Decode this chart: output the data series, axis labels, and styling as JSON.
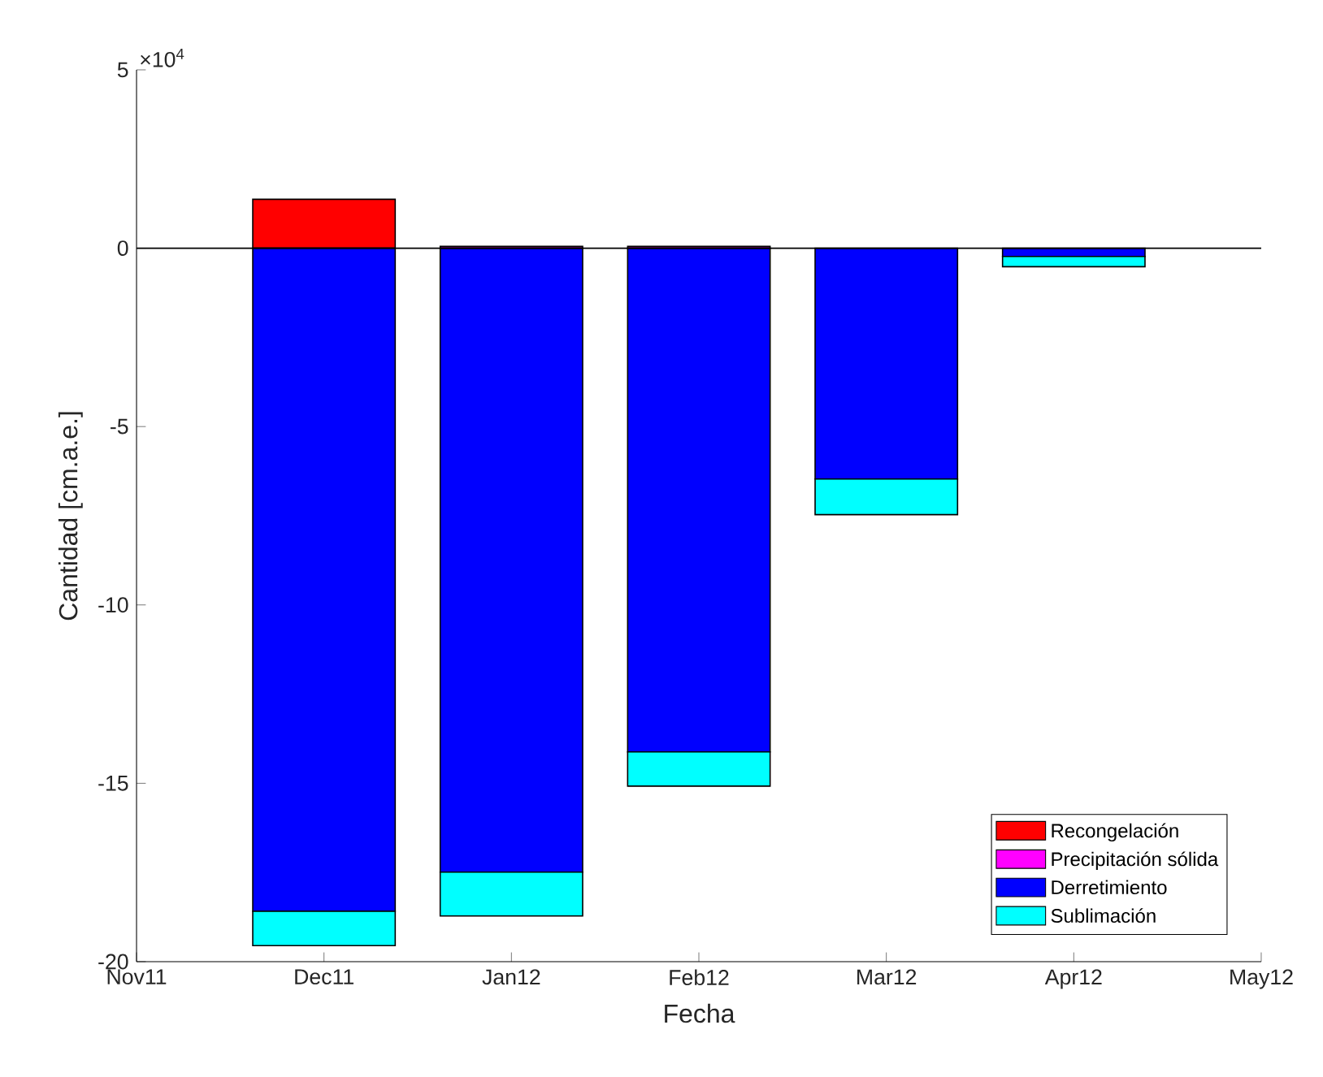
{
  "chart_data": {
    "type": "bar",
    "stacked": true,
    "categories": [
      "Nov11",
      "Dec11",
      "Jan12",
      "Feb12",
      "Mar12",
      "Apr12",
      "May12"
    ],
    "series": [
      {
        "name": "Recongelación",
        "color": "#ff0000",
        "values": [
          null,
          1.37,
          null,
          null,
          null,
          null,
          null
        ]
      },
      {
        "name": "Precipitación sólida",
        "color": "#ff00ff",
        "values": [
          null,
          null,
          0.05,
          0.05,
          null,
          null,
          null
        ]
      },
      {
        "name": "Derretimiento",
        "color": "#0000ff",
        "values": [
          null,
          -18.59,
          -17.49,
          -14.12,
          -6.47,
          -0.23,
          null
        ]
      },
      {
        "name": "Sublimación",
        "color": "#00ffff",
        "values": [
          null,
          -0.96,
          -1.23,
          -0.96,
          -1.0,
          -0.29,
          null
        ]
      }
    ],
    "xlabel": "Fecha",
    "ylabel": "Cantidad [cm.a.e.]",
    "ylim": [
      -20,
      5
    ],
    "yticks": [
      -20,
      -15,
      -10,
      -5,
      0,
      5
    ],
    "annotations": [
      "×10$^{4}$"
    ],
    "ref_lines": [
      {
        "axis": "y",
        "value": 0,
        "color": "#000000"
      }
    ],
    "legend": "bottom right",
    "grid": false
  }
}
